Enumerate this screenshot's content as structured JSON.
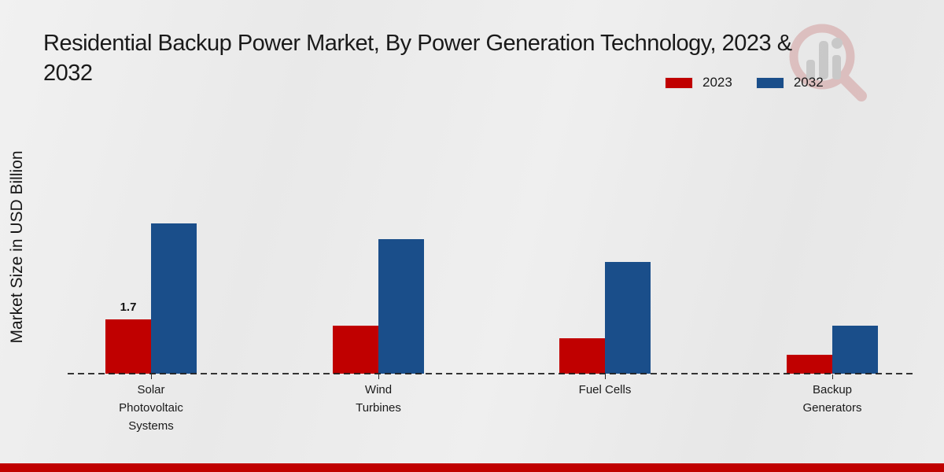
{
  "title": {
    "full": "Residential Backup Power Market, By Power Generation Technology, 2023 & 2032",
    "lines": [
      "Residential Backup Power Market, By Power Generation Technology, 2023 &",
      "2032"
    ]
  },
  "y_axis": {
    "label": "Market Size in USD Billion"
  },
  "legend": {
    "position": "top-right"
  },
  "chart_data": {
    "type": "bar",
    "categories": [
      "Solar\nPhotovoltaic\nSystems",
      "Wind\nTurbines",
      "Fuel Cells",
      "Backup\nGenerators"
    ],
    "series": [
      {
        "name": "2023",
        "color": "#c00000",
        "values": [
          1.7,
          1.5,
          1.1,
          0.6
        ]
      },
      {
        "name": "2032",
        "color": "#1a4e8a",
        "values": [
          4.7,
          4.2,
          3.5,
          1.5
        ]
      }
    ],
    "title": "Residential Backup Power Market, By Power Generation Technology, 2023 & 2032",
    "xlabel": "",
    "ylabel": "Market Size in USD Billion",
    "ylim": [
      0,
      5.6
    ],
    "grid": false,
    "legend_position": "top-right",
    "baseline_style": "dashed",
    "bar_value_labels": [
      {
        "series_index": 0,
        "group_index": 0,
        "text": "1.7"
      }
    ]
  },
  "colors": {
    "series_2023": "#c00000",
    "series_2032": "#1a4e8a",
    "footer_bar": "#c00000",
    "background": "#eaeaea",
    "text": "#1a1a1a",
    "baseline": "#1a1a1a"
  }
}
